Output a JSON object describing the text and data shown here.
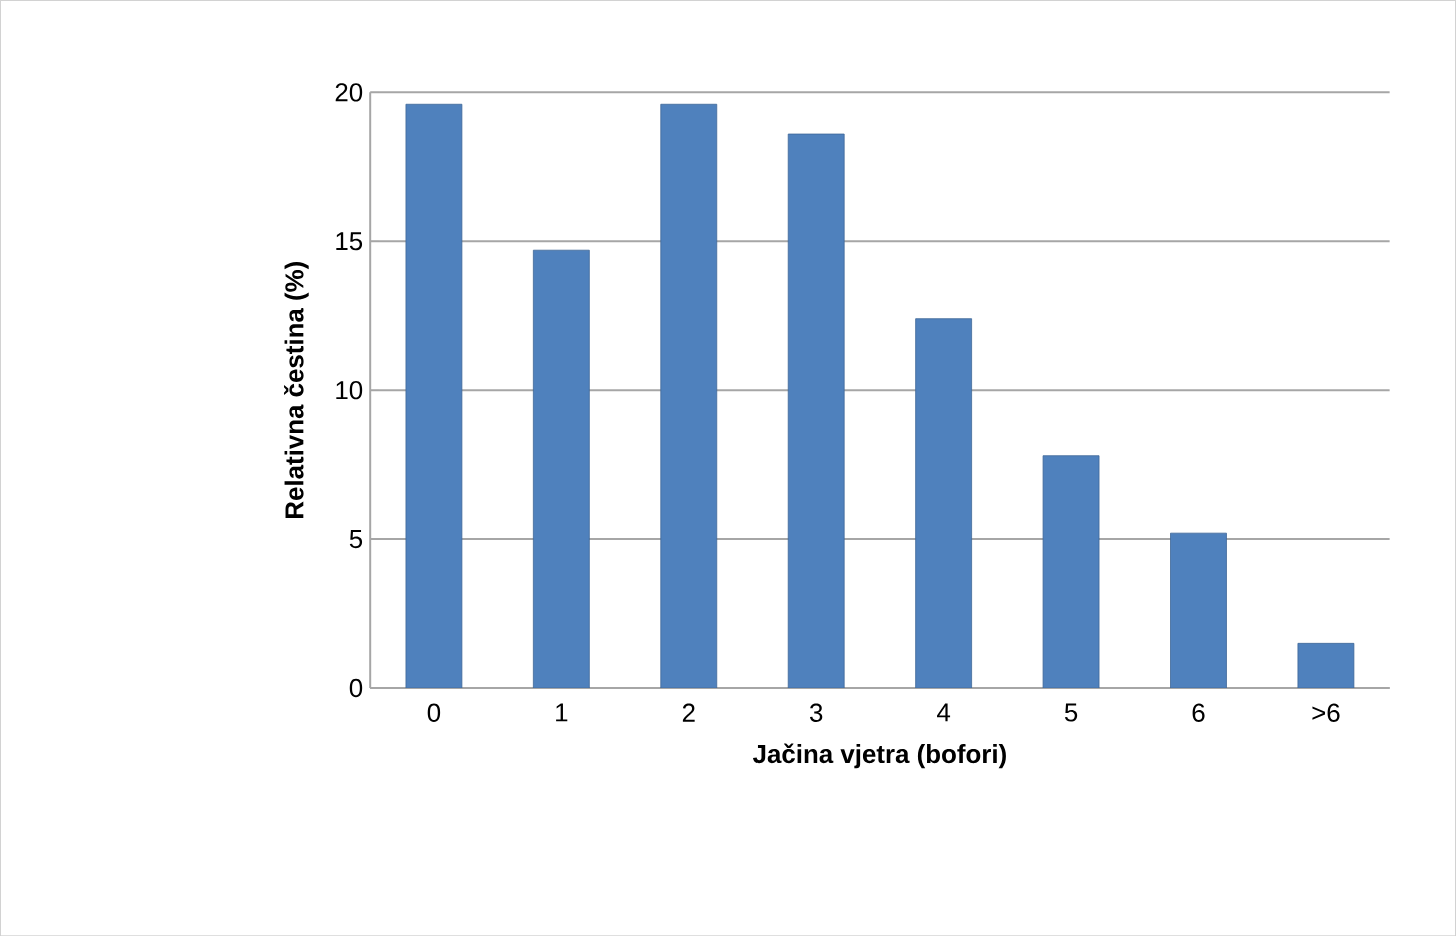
{
  "chart_data": {
    "type": "bar",
    "xlabel": "Jačina vjetra (bofori)",
    "ylabel": "Relativna čestina (%)",
    "categories": [
      "0",
      "1",
      "2",
      "3",
      "4",
      "5",
      "6",
      ">6"
    ],
    "values": [
      19.6,
      14.7,
      19.6,
      18.6,
      12.4,
      7.8,
      5.2,
      1.5
    ],
    "color": "#4f81bd",
    "ylim": [
      0,
      20
    ],
    "yticks": [
      0,
      5,
      10,
      15,
      20
    ],
    "grid": "y"
  }
}
